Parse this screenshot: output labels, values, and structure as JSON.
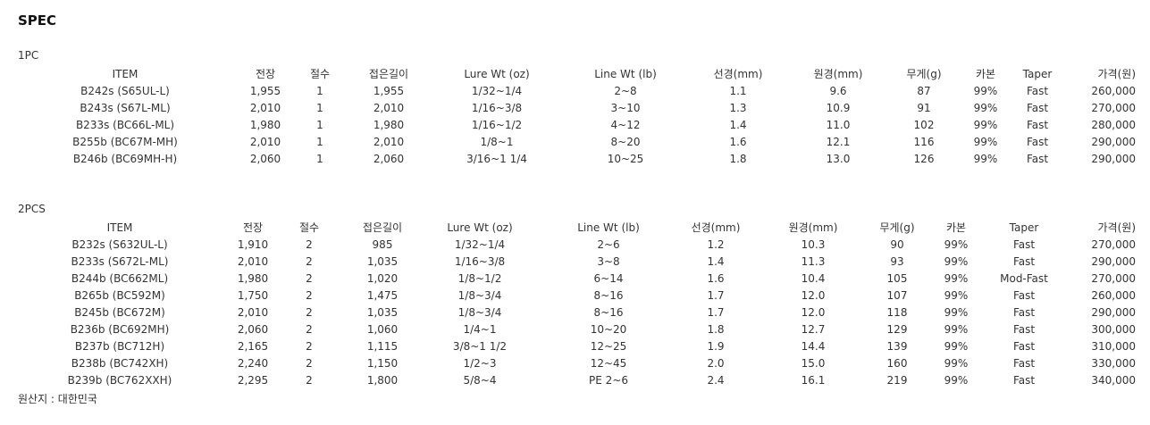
{
  "title": "SPEC",
  "tables": [
    {
      "label": "1PC",
      "headers": [
        "ITEM",
        "전장",
        "절수",
        "접은길이",
        "Lure Wt (oz)",
        "Line Wt (lb)",
        "선경(mm)",
        "원경(mm)",
        "무게(g)",
        "카본",
        "Taper",
        "가격(원)"
      ],
      "rows": [
        [
          "B242s (S65UL-L)",
          "1,955",
          "1",
          "1,955",
          "1/32~1/4",
          "2~8",
          "1.1",
          "9.6",
          "87",
          "99%",
          "Fast",
          "260,000"
        ],
        [
          "B243s (S67L-ML)",
          "2,010",
          "1",
          "2,010",
          "1/16~3/8",
          "3~10",
          "1.3",
          "10.9",
          "91",
          "99%",
          "Fast",
          "270,000"
        ],
        [
          "B233s (BC66L-ML)",
          "1,980",
          "1",
          "1,980",
          "1/16~1/2",
          "4~12",
          "1.4",
          "11.0",
          "102",
          "99%",
          "Fast",
          "280,000"
        ],
        [
          "B255b (BC67M-MH)",
          "2,010",
          "1",
          "2,010",
          "1/8~1",
          "8~20",
          "1.6",
          "12.1",
          "116",
          "99%",
          "Fast",
          "290,000"
        ],
        [
          "B246b (BC69MH-H)",
          "2,060",
          "1",
          "2,060",
          "3/16~1 1/4",
          "10~25",
          "1.8",
          "13.0",
          "126",
          "99%",
          "Fast",
          "290,000"
        ]
      ]
    },
    {
      "label": "2PCS",
      "headers": [
        "ITEM",
        "전장",
        "절수",
        "접은길이",
        "Lure Wt (oz)",
        "Line Wt (lb)",
        "선경(mm)",
        "원경(mm)",
        "무게(g)",
        "카본",
        "Taper",
        "가격(원)"
      ],
      "rows": [
        [
          "B232s (S632UL-L)",
          "1,910",
          "2",
          "985",
          "1/32~1/4",
          "2~6",
          "1.2",
          "10.3",
          "90",
          "99%",
          "Fast",
          "270,000"
        ],
        [
          "B233s (S672L-ML)",
          "2,010",
          "2",
          "1,035",
          "1/16~3/8",
          "3~8",
          "1.4",
          "11.3",
          "93",
          "99%",
          "Fast",
          "290,000"
        ],
        [
          "B244b (BC662ML)",
          "1,980",
          "2",
          "1,020",
          "1/8~1/2",
          "6~14",
          "1.6",
          "10.4",
          "105",
          "99%",
          "Mod-Fast",
          "270,000"
        ],
        [
          "B265b (BC592M)",
          "1,750",
          "2",
          "1,475",
          "1/8~3/4",
          "8~16",
          "1.7",
          "12.0",
          "107",
          "99%",
          "Fast",
          "260,000"
        ],
        [
          "B245b (BC672M)",
          "2,010",
          "2",
          "1,035",
          "1/8~3/4",
          "8~16",
          "1.7",
          "12.0",
          "118",
          "99%",
          "Fast",
          "290,000"
        ],
        [
          "B236b (BC692MH)",
          "2,060",
          "2",
          "1,060",
          "1/4~1",
          "10~20",
          "1.8",
          "12.7",
          "129",
          "99%",
          "Fast",
          "300,000"
        ],
        [
          "B237b (BC712H)",
          "2,165",
          "2",
          "1,115",
          "3/8~1 1/2",
          "12~25",
          "1.9",
          "14.4",
          "139",
          "99%",
          "Fast",
          "310,000"
        ],
        [
          "B238b (BC742XH)",
          "2,240",
          "2",
          "1,150",
          "1/2~3",
          "12~45",
          "2.0",
          "15.0",
          "160",
          "99%",
          "Fast",
          "330,000"
        ],
        [
          "B239b (BC762XXH)",
          "2,295",
          "2",
          "1,800",
          "5/8~4",
          "PE 2~6",
          "2.4",
          "16.1",
          "219",
          "99%",
          "Fast",
          "340,000"
        ]
      ]
    }
  ],
  "origin": "원산지 : 대한민국"
}
